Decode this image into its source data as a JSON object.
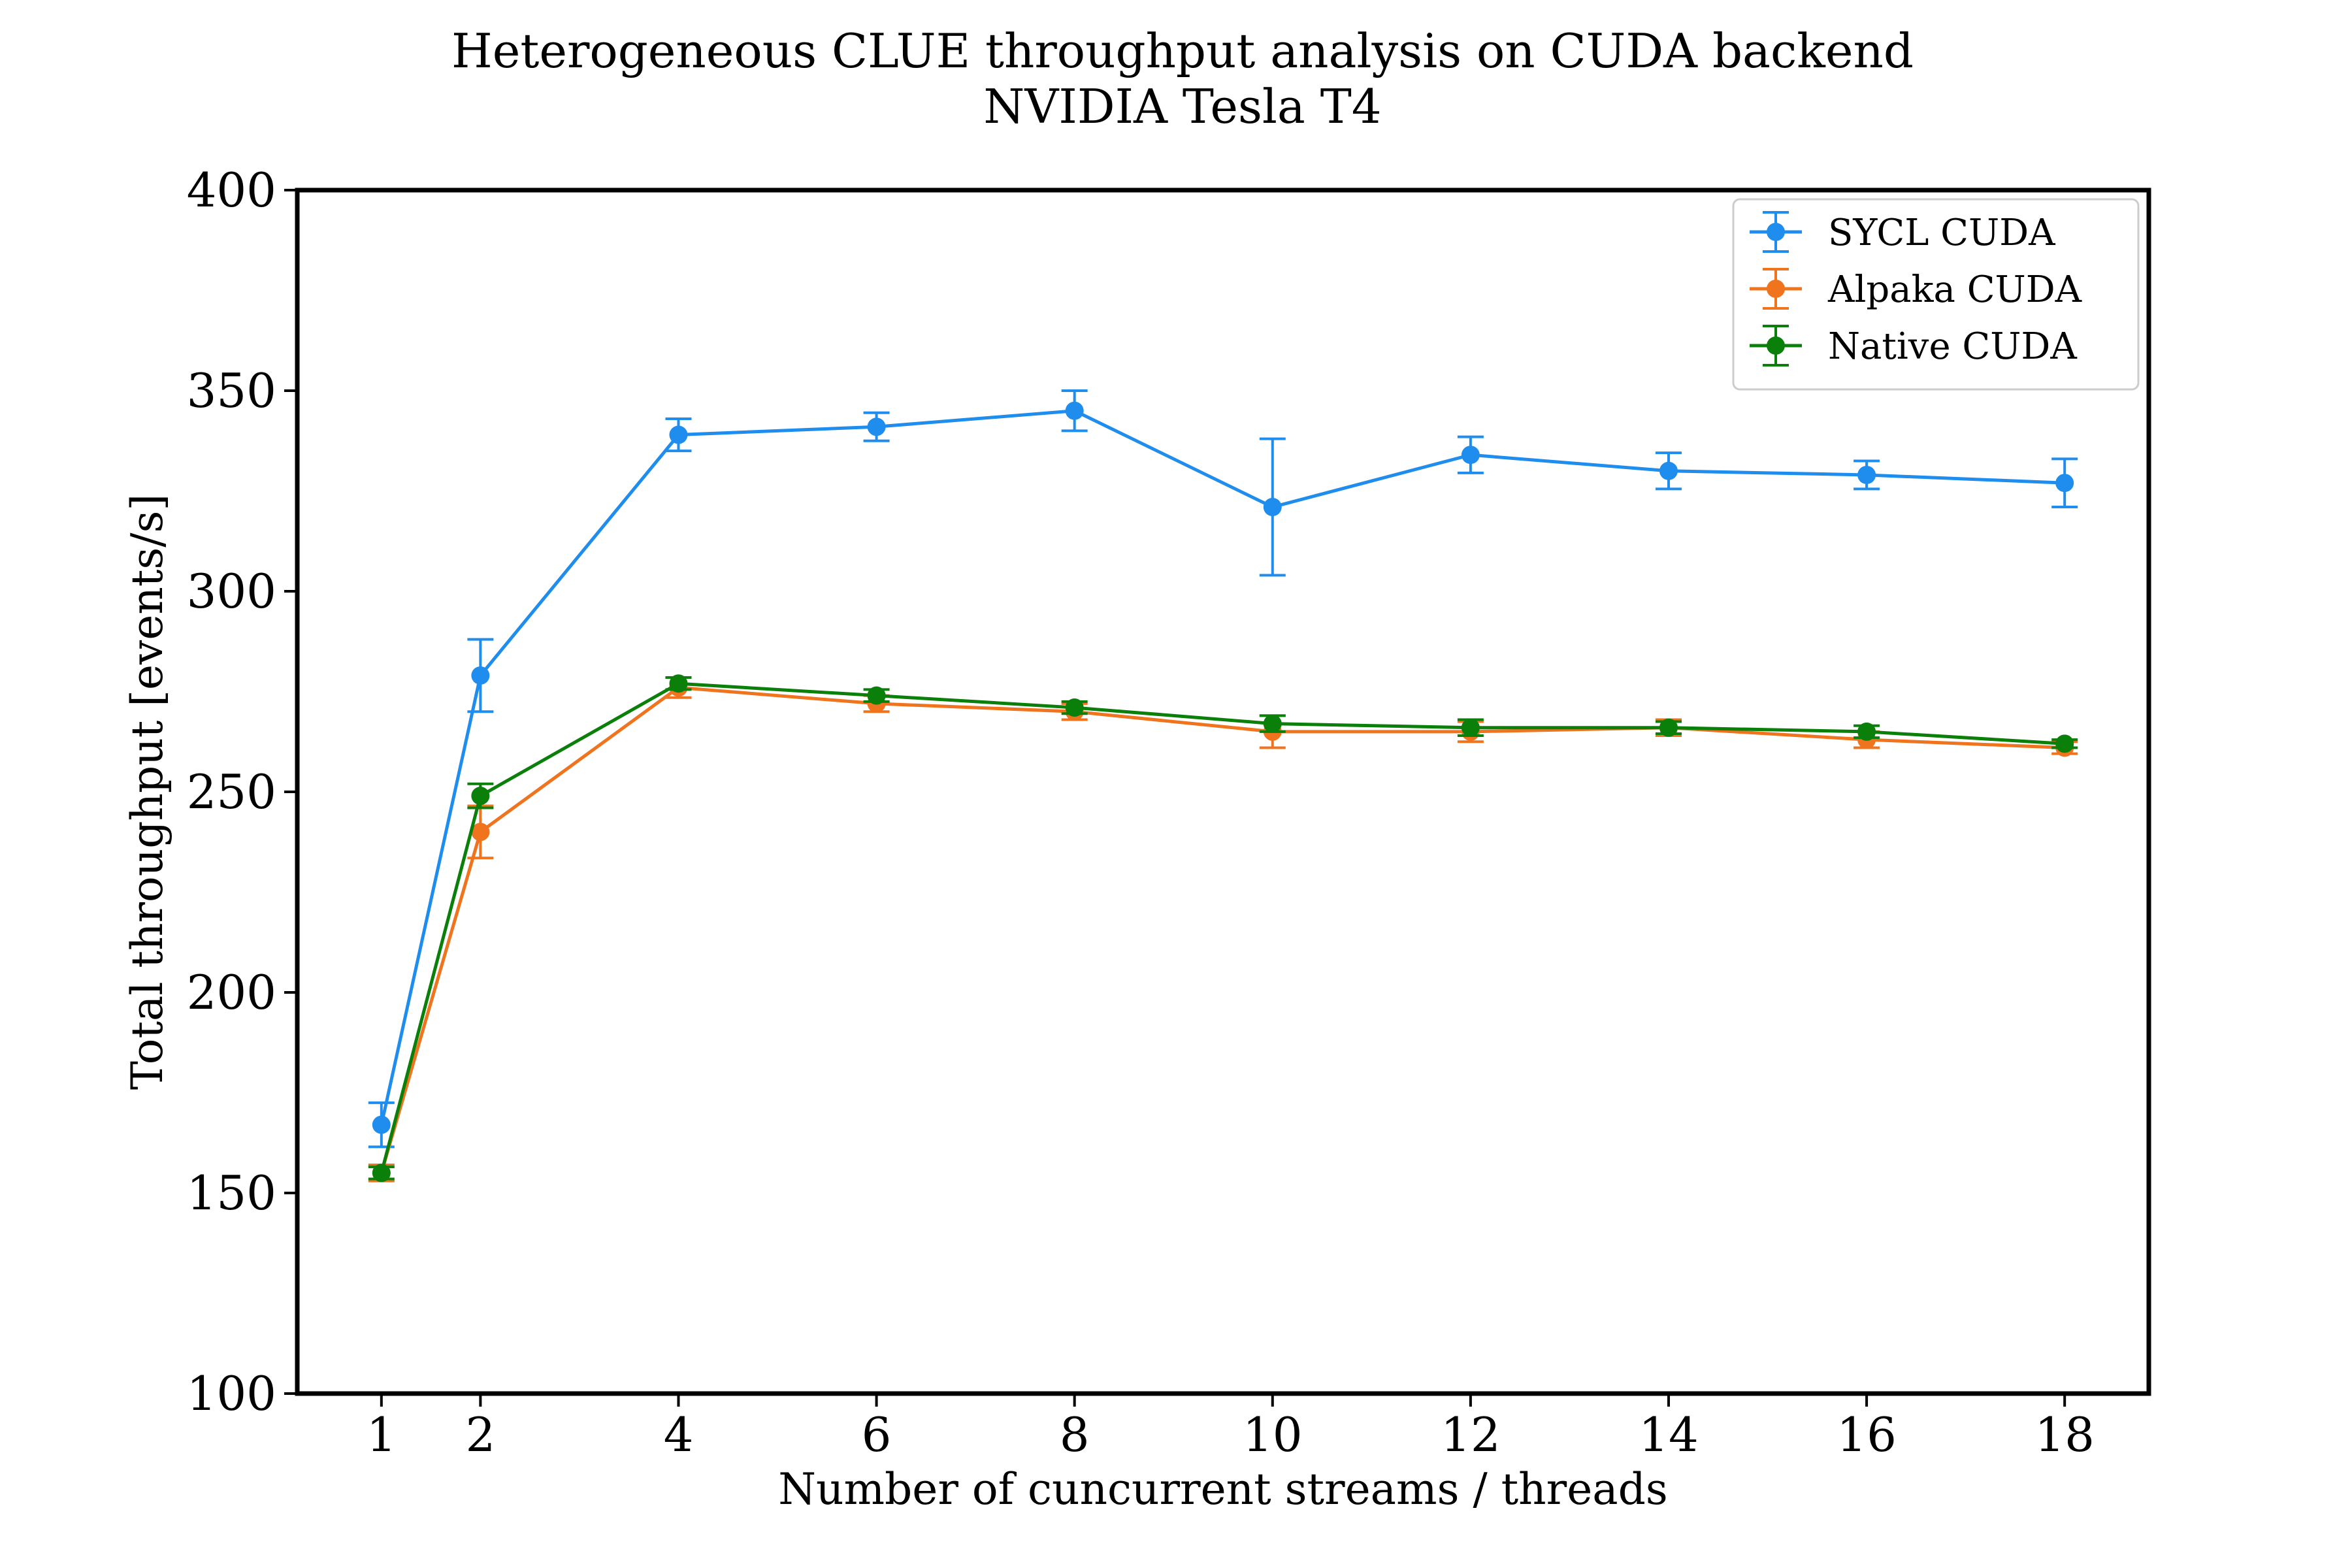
{
  "chart_data": {
    "type": "line",
    "title": "Heterogeneous CLUE throughput analysis on CUDA backend",
    "subtitle": "NVIDIA Tesla T4",
    "xlabel": "Number of cuncurrent streams / threads",
    "ylabel": "Total throughput [events/s]",
    "xlim": [
      0.15,
      18.85
    ],
    "ylim": [
      100,
      400
    ],
    "x_ticks": [
      1,
      2,
      4,
      6,
      8,
      10,
      12,
      14,
      16,
      18
    ],
    "y_ticks": [
      100,
      150,
      200,
      250,
      300,
      350,
      400
    ],
    "grid": false,
    "legend_position": "top-right",
    "x": [
      1,
      2,
      4,
      6,
      8,
      10,
      12,
      14,
      16,
      18
    ],
    "series": [
      {
        "name": "SYCL CUDA",
        "color": "#1f8ded",
        "values": [
          167,
          279,
          339,
          341,
          345,
          321,
          334,
          330,
          329,
          327
        ],
        "errors": [
          5.5,
          9,
          4,
          3.5,
          5,
          17,
          4.5,
          4.5,
          3.5,
          6
        ]
      },
      {
        "name": "Alpaka CUDA",
        "color": "#f0731e",
        "values": [
          155,
          240,
          276,
          272,
          270,
          265,
          265,
          266,
          263,
          261
        ],
        "errors": [
          2,
          6.5,
          2.5,
          2,
          2,
          4,
          2.5,
          2,
          2,
          1.5
        ]
      },
      {
        "name": "Native CUDA",
        "color": "#0a7f0a",
        "values": [
          155,
          249,
          277,
          274,
          271,
          267,
          266,
          266,
          265,
          262
        ],
        "errors": [
          1.5,
          3,
          1.5,
          1.5,
          1.5,
          2,
          2,
          1.5,
          1.5,
          1
        ]
      }
    ]
  }
}
